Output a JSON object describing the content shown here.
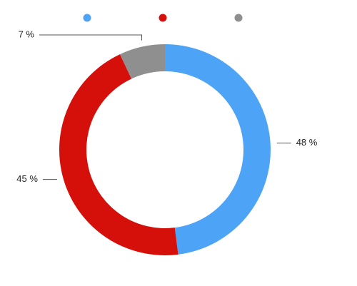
{
  "chart_data": {
    "type": "donut",
    "values": [
      48,
      45,
      7
    ],
    "value_labels": [
      "48 %",
      "45 %",
      "7 %"
    ],
    "colors": [
      "#4da3f5",
      "#d50f0a",
      "#8f8f8f"
    ],
    "legend": "top"
  }
}
